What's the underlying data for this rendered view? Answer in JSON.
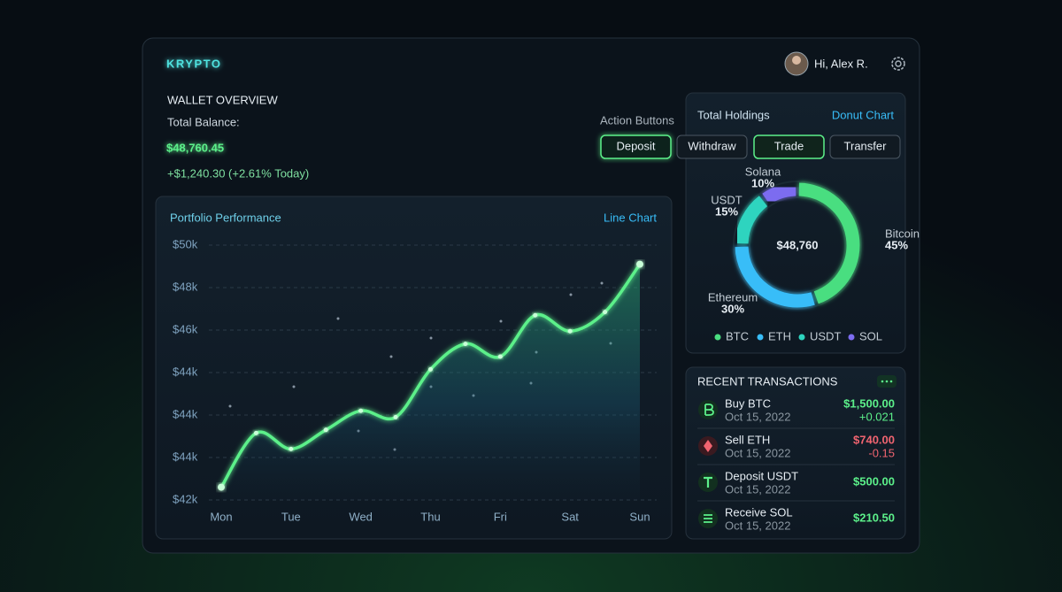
{
  "header": {
    "brand": "KRYPTO",
    "greeting": "Hi, Alex R."
  },
  "wallet": {
    "heading": "WALLET OVERVIEW",
    "balance_label": "Total Balance:",
    "balance": "$48,760.45",
    "change": "+$1,240.30 (+2.61% Today)"
  },
  "actions": {
    "label": "Action Buttons",
    "buttons": [
      "Deposit",
      "Withdraw",
      "Trade",
      "Transfer"
    ]
  },
  "chart_data": [
    {
      "type": "line",
      "title": "Portfolio Performance",
      "subtitle": "Line Chart",
      "categories": [
        "Mon",
        null,
        "Tue",
        null,
        "Wed",
        null,
        "Thu",
        null,
        "Fri",
        null,
        "Sat",
        null,
        "Sun"
      ],
      "values": [
        42400,
        44100,
        43600,
        44200,
        44800,
        44600,
        46100,
        46900,
        46500,
        47800,
        47300,
        47900,
        49400
      ],
      "ylim": [
        42000,
        50000
      ],
      "y_labels": [
        "$50k",
        "$48k",
        "$46k",
        "$44k",
        "$44k",
        "$44k",
        "$42k"
      ],
      "color": "#5cf08a"
    },
    {
      "type": "donut",
      "title": "Total Holdings",
      "subtitle": "Donut Chart",
      "center_label": "$48,760",
      "categories": [
        "Bitcoin",
        "Ethereum",
        "USDT",
        "Solana"
      ],
      "values": [
        45,
        30,
        15,
        10
      ],
      "value_labels": [
        "45%",
        "30%",
        "15%",
        "10%"
      ],
      "colors": [
        "#4ade80",
        "#38bdf8",
        "#2dd4bf",
        "#7c6cf0"
      ],
      "legend": [
        "BTC",
        "ETH",
        "USDT",
        "SOL"
      ]
    }
  ],
  "transactions": {
    "heading": "RECENT TRANSACTIONS",
    "items": [
      {
        "title": "Buy BTC",
        "date": "Oct 15, 2022",
        "amount": "$1,500.00",
        "change": "+0.021"
      },
      {
        "title": "Sell ETH",
        "date": "Oct 15, 2022",
        "amount": "$740.00",
        "change": "-0.15"
      },
      {
        "title": "Deposit USDT",
        "date": "Oct 15, 2022",
        "amount": "$500.00"
      },
      {
        "title": "Receive SOL",
        "date": "Oct 15, 2022",
        "amount": "$210.50"
      }
    ]
  }
}
